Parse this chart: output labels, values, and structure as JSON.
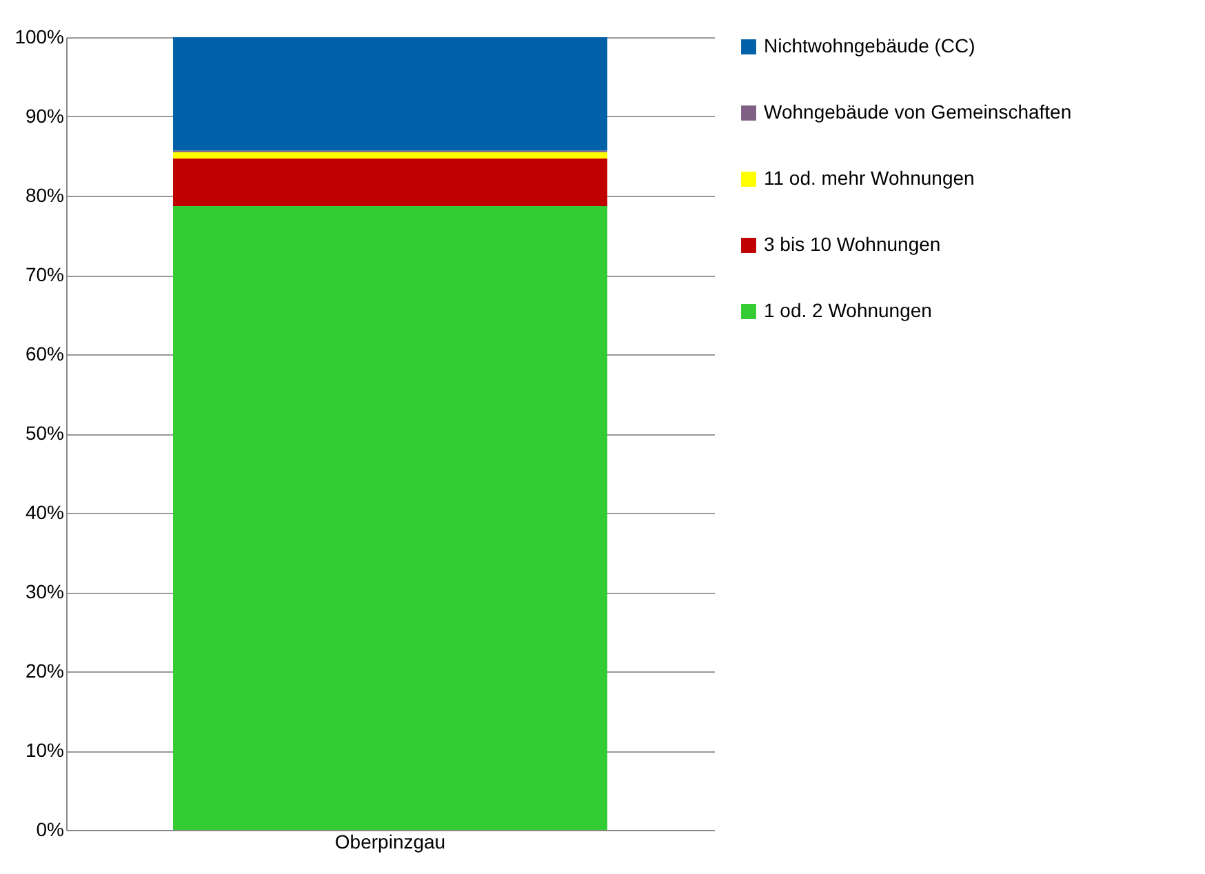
{
  "chart_data": {
    "type": "bar",
    "stacked": true,
    "categories": [
      "Oberpinzgau"
    ],
    "series": [
      {
        "name": "1 od. 2 Wohnungen",
        "color": "#33cc33",
        "values": [
          78.7
        ]
      },
      {
        "name": "3 bis 10 Wohnungen",
        "color": "#c00000",
        "values": [
          6.0
        ]
      },
      {
        "name": "11 od. mehr Wohnungen",
        "color": "#ffff00",
        "values": [
          0.8
        ]
      },
      {
        "name": "Wohngebäude von Gemeinschaften",
        "color": "#7f6084",
        "values": [
          0.2
        ]
      },
      {
        "name": "Nichtwohngebäude (CC)",
        "color": "#0060a8",
        "values": [
          14.3
        ]
      }
    ],
    "ylim": [
      0,
      100
    ],
    "yticks": [
      {
        "value": 0,
        "label": "0%"
      },
      {
        "value": 10,
        "label": "10%"
      },
      {
        "value": 20,
        "label": "20%"
      },
      {
        "value": 30,
        "label": "30%"
      },
      {
        "value": 40,
        "label": "40%"
      },
      {
        "value": 50,
        "label": "50%"
      },
      {
        "value": 60,
        "label": "60%"
      },
      {
        "value": 70,
        "label": "70%"
      },
      {
        "value": 80,
        "label": "80%"
      },
      {
        "value": 90,
        "label": "90%"
      },
      {
        "value": 100,
        "label": "100%"
      }
    ],
    "grid": "y",
    "legend": "right"
  }
}
